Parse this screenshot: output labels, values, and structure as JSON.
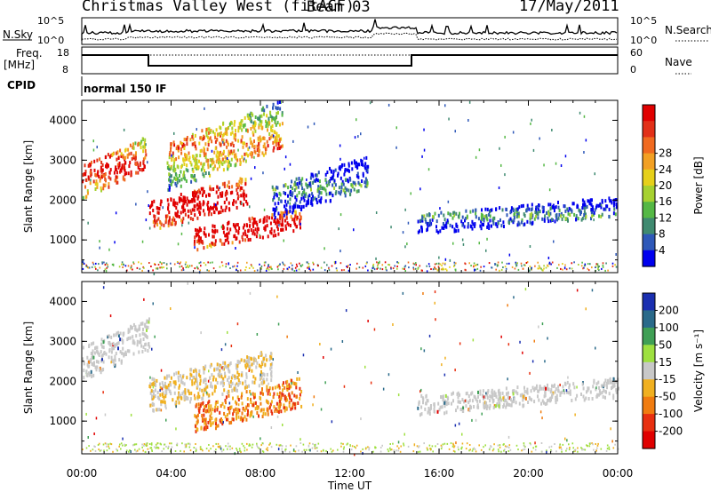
{
  "header": {
    "title": "Christmas Valley West (fitACF)",
    "beam": "Beam 03",
    "date": "17/May/2011"
  },
  "top_panels": {
    "nsky_label": "N.Sky",
    "nsearch_label": "N.Search",
    "nsky_ticks": [
      "10^5",
      "10^0"
    ],
    "nsearch_ticks": [
      "10^5",
      "10^0"
    ],
    "freq_label": "Freq.",
    "freq_unit": "[MHz]",
    "freq_ticks": [
      "18",
      "8"
    ],
    "nave_label": "Nave",
    "nave_ticks": [
      "60",
      "0"
    ],
    "cpid_label": "CPID",
    "cpid_value": "normal 150 IF"
  },
  "chart_data": [
    {
      "type": "heatmap",
      "ylabel": "Slant Range [km]",
      "yticks": [
        "1000",
        "2000",
        "3000",
        "4000"
      ],
      "ylim": [
        180,
        4500
      ],
      "colorbar": {
        "label": "Power [dB]",
        "ticks": [
          "4",
          "8",
          "12",
          "16",
          "20",
          "24",
          "28"
        ],
        "colors": [
          "#0000ee",
          "#2e58b8",
          "#3f8a70",
          "#55b845",
          "#a6d130",
          "#e6d01a",
          "#f2a024",
          "#f06a20",
          "#e23018",
          "#e00000"
        ]
      },
      "regions": [
        {
          "time_h": [
            0.0,
            2.9
          ],
          "range_km": [
            2100,
            3600
          ],
          "value": "16-28 dB"
        },
        {
          "time_h": [
            3.0,
            7.4
          ],
          "range_km": [
            1300,
            2600
          ],
          "value": "24-28 dB"
        },
        {
          "time_h": [
            3.8,
            9.0
          ],
          "range_km": [
            2300,
            4500
          ],
          "value": "8-20 dB"
        },
        {
          "time_h": [
            5.0,
            9.8
          ],
          "range_km": [
            800,
            1800
          ],
          "value": "20-28 dB"
        },
        {
          "time_h": [
            8.5,
            12.8
          ],
          "range_km": [
            1600,
            3100
          ],
          "value": "4-12 dB"
        },
        {
          "time_h": [
            15.0,
            24.0
          ],
          "range_km": [
            1200,
            2100
          ],
          "value": "8-16 dB"
        }
      ]
    },
    {
      "type": "heatmap",
      "xlabel": "Time UT",
      "xticks": [
        "00:00",
        "04:00",
        "08:00",
        "12:00",
        "16:00",
        "20:00",
        "00:00"
      ],
      "xlim_h": [
        0,
        24
      ],
      "ylabel": "Slant Range [km]",
      "yticks": [
        "1000",
        "2000",
        "3000",
        "4000"
      ],
      "ylim": [
        180,
        4500
      ],
      "colorbar": {
        "label": "Velocity [m s^-1]",
        "ticks": [
          "200",
          "100",
          "50",
          "15",
          "-15",
          "-50",
          "-100",
          "-200"
        ],
        "colors": [
          "#1a2fb0",
          "#2a6a8a",
          "#3f9f55",
          "#9ee040",
          "#c8c8c8",
          "#f0b020",
          "#f07c10",
          "#e83010",
          "#e00000"
        ]
      },
      "regions": [
        {
          "time_h": [
            0.0,
            3.0
          ],
          "range_km": [
            2100,
            3600
          ],
          "value": "-15 to 15 m/s"
        },
        {
          "time_h": [
            3.0,
            8.5
          ],
          "range_km": [
            1300,
            2800
          ],
          "value": "-15 to -50 m/s"
        },
        {
          "time_h": [
            5.0,
            9.8
          ],
          "range_km": [
            750,
            2100
          ],
          "value": "-50 to -100 m/s"
        },
        {
          "time_h": [
            15.0,
            24.0
          ],
          "range_km": [
            1200,
            2100
          ],
          "value": "-15 to 15 m/s"
        }
      ]
    }
  ]
}
